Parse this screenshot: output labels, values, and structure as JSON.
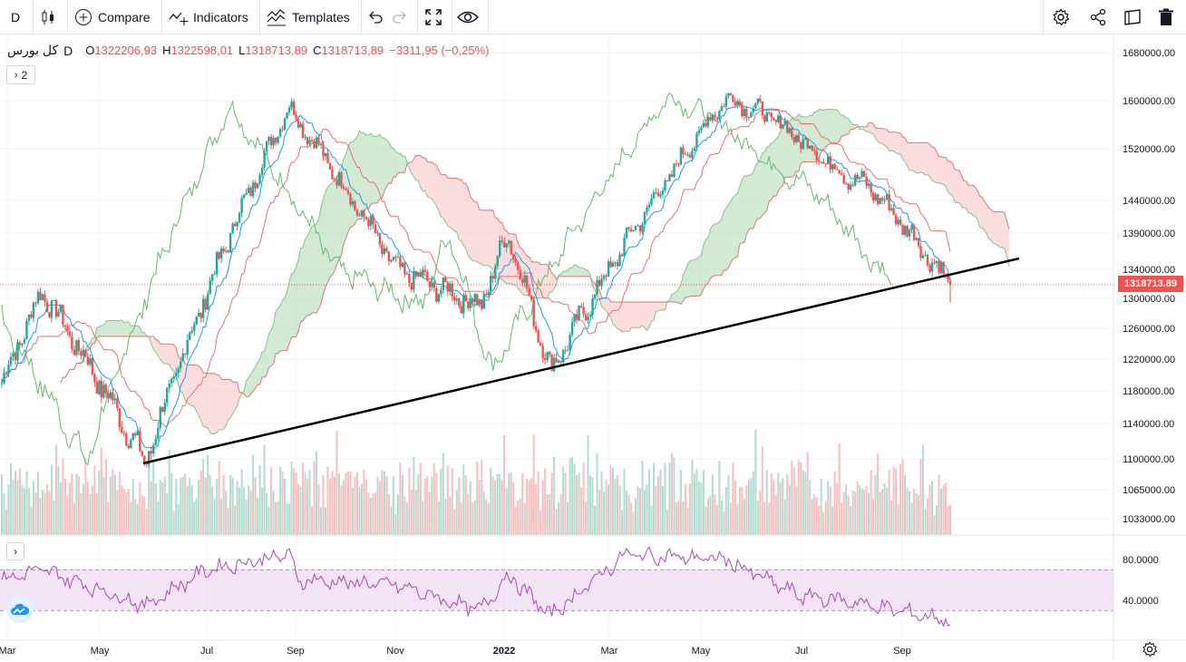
{
  "toolbar": {
    "interval": "D",
    "compare_label": "Compare",
    "indicators_label": "Indicators",
    "templates_label": "Templates"
  },
  "legend": {
    "symbol": "کل بورس",
    "interval": "D",
    "open_label": "O",
    "open": "1322206,93",
    "high_label": "H",
    "high": "1322598,01",
    "low_label": "L",
    "low": "1318713,89",
    "close_label": "C",
    "close": "1318713,89",
    "change": "−3311,95 (−0,25%)",
    "collapsed_count": "2"
  },
  "last_price": "1318713.89",
  "colors": {
    "up": "#26a69a",
    "down": "#ef5350",
    "tenkan": "#2196f3",
    "kijun": "#e57373",
    "chikou": "#66bb6a",
    "cloud_up": "#a5d6a7",
    "cloud_down": "#f8bbbb",
    "rsi": "#ab47bc",
    "trendline": "#000000"
  },
  "chart_data": [
    {
      "type": "candlestick",
      "indicator": "Ichimoku Cloud",
      "y_ticks": [
        "1680000.00",
        "1600000.00",
        "1520000.00",
        "1440000.00",
        "1390000.00",
        "1340000.00",
        "1300000.00",
        "1260000.00",
        "1220000.00",
        "1180000.00",
        "1140000.00",
        "1100000.00",
        "1065000.00",
        "1033000.00"
      ],
      "x_ticks": [
        "Mar",
        "May",
        "Jul",
        "Sep",
        "Nov",
        "2022",
        "Mar",
        "May",
        "Jul",
        "Sep"
      ],
      "key_points": [
        {
          "date": "Mar",
          "close": 1190000
        },
        {
          "date": "Apr",
          "close": 1310000
        },
        {
          "date": "late May",
          "close": 1095000
        },
        {
          "date": "late Aug",
          "close": 1590000
        },
        {
          "date": "Nov",
          "close": 1340000
        },
        {
          "date": "Dec",
          "close": 1290000
        },
        {
          "date": "Jan",
          "close": 1390000
        },
        {
          "date": "Feb",
          "close": 1205000
        },
        {
          "date": "May",
          "close": 1605000
        },
        {
          "date": "Jun",
          "close": 1575000
        },
        {
          "date": "Jul",
          "close": 1480000
        },
        {
          "date": "Aug",
          "close": 1460000
        },
        {
          "date": "Sep",
          "close": 1318713.89
        }
      ],
      "trendline": {
        "from": {
          "date": "late May",
          "value": 1095000
        },
        "to": {
          "date": "Nov (next)",
          "value": 1355000
        }
      }
    },
    {
      "type": "line",
      "indicator": "RSI",
      "y_ticks": [
        "80.0000",
        "40.0000"
      ],
      "band": [
        30,
        70
      ],
      "key_points": [
        {
          "date": "Mar",
          "value": 60
        },
        {
          "date": "Apr",
          "value": 70
        },
        {
          "date": "May",
          "value": 35
        },
        {
          "date": "Jul",
          "value": 70
        },
        {
          "date": "late Aug",
          "value": 85
        },
        {
          "date": "Sep",
          "value": 60
        },
        {
          "date": "Nov",
          "value": 55
        },
        {
          "date": "Dec",
          "value": 30
        },
        {
          "date": "Jan",
          "value": 65
        },
        {
          "date": "Feb",
          "value": 25
        },
        {
          "date": "Apr",
          "value": 85
        },
        {
          "date": "May",
          "value": 80
        },
        {
          "date": "Jun",
          "value": 45
        },
        {
          "date": "Jul",
          "value": 40
        },
        {
          "date": "Aug",
          "value": 35
        },
        {
          "date": "Sep",
          "value": 20
        }
      ]
    }
  ]
}
